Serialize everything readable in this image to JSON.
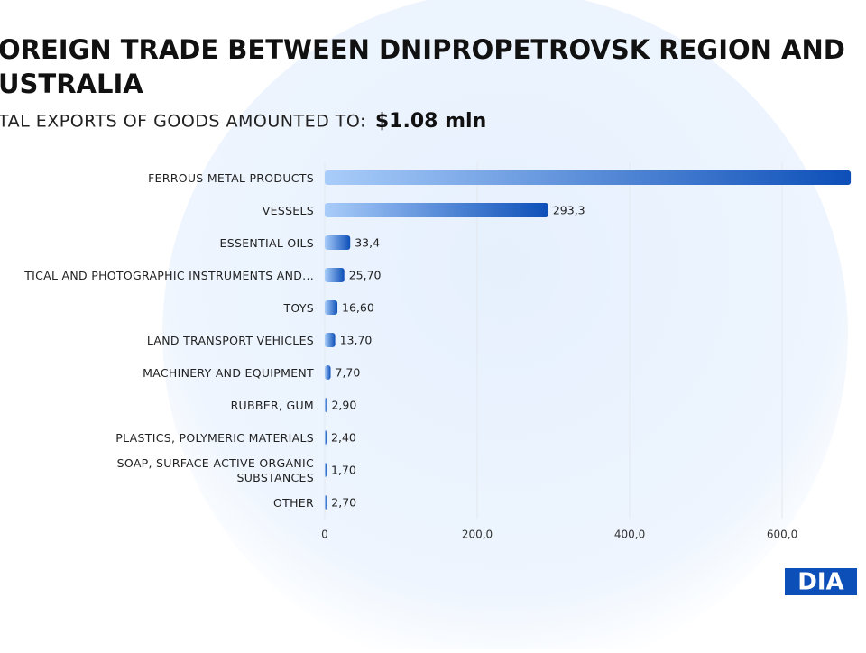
{
  "chart_data": {
    "type": "barh",
    "title": "OREIGN TRADE BETWEEN DNIPROPETROVSK REGION AND USTRALIA",
    "subtitle": "TAL EXPORTS OF GOODS AMOUNTED TO:",
    "subtitle_value": "$1.08 mln",
    "categories": [
      "FERROUS METAL PRODUCTS",
      "VESSELS",
      "ESSENTIAL OILS",
      "TICAL AND PHOTOGRAPHIC INSTRUMENTS AND...",
      "TOYS",
      "LAND TRANSPORT VEHICLES",
      "MACHINERY AND EQUIPMENT",
      "RUBBER, GUM",
      "PLASTICS, POLYMERIC MATERIALS",
      "SOAP, SURFACE-ACTIVE ORGANIC SUBSTANCES",
      "OTHER"
    ],
    "values": [
      690,
      293.3,
      33.4,
      25.7,
      16.6,
      13.7,
      7.7,
      2.9,
      2.4,
      1.7,
      2.7
    ],
    "value_labels": [
      null,
      "293,3",
      "33,4",
      "25,70",
      "16,60",
      "13,70",
      "7,70",
      "2,90",
      "2,40",
      "1,70",
      "2,70"
    ],
    "colors": [
      "#a9cdfa",
      "#0d4fb8"
    ],
    "xlim": [
      0,
      710
    ],
    "xticks": [
      0,
      {
        "value": 200,
        "label": "200,0"
      },
      {
        "value": 400,
        "label": "400,0"
      },
      {
        "value": 600,
        "label": "600,0"
      }
    ],
    "grid": true,
    "logo": "DIA"
  }
}
